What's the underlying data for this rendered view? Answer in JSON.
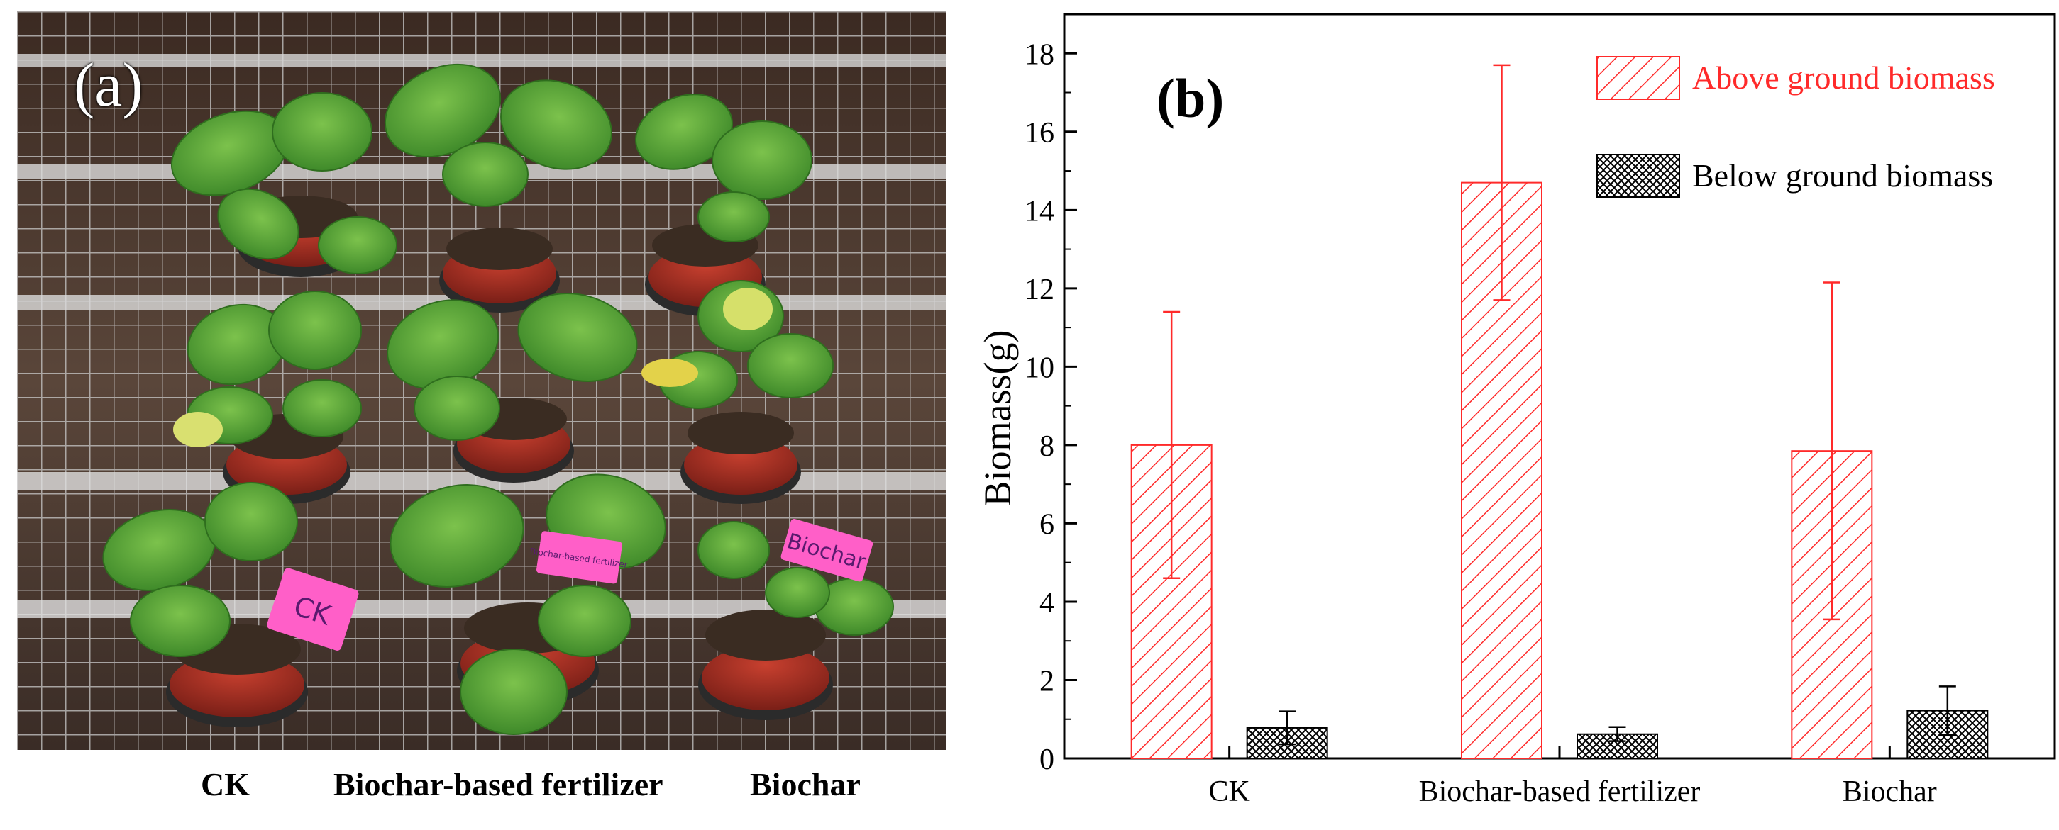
{
  "photo": {
    "panel_label": "(a)",
    "captions": [
      "CK",
      "Biochar-based  fertilizer",
      "Biochar"
    ],
    "pot_tags": [
      "CK",
      "Biochar-based fertilizer",
      "Biochar"
    ]
  },
  "chart_data": {
    "type": "bar",
    "panel_label": "(b)",
    "categories": [
      "CK",
      "Biochar-based fertilizer",
      "Biochar"
    ],
    "series": [
      {
        "name": "Above ground biomass",
        "values": [
          8.0,
          14.7,
          7.85
        ],
        "errors": [
          3.4,
          3.0,
          4.3
        ],
        "color": "#ff2a2a",
        "pattern": "diagonal-hatch"
      },
      {
        "name": "Below ground biomass",
        "values": [
          0.78,
          0.62,
          1.22
        ],
        "errors": [
          0.42,
          0.18,
          0.62
        ],
        "color": "#000000",
        "pattern": "crosshatch"
      }
    ],
    "ylabel": "Biomass(g)",
    "xlabel": "",
    "ylim": [
      0,
      19
    ],
    "yticks": [
      0,
      2,
      4,
      6,
      8,
      10,
      12,
      14,
      16,
      18
    ],
    "legend_position": "top-right",
    "grid": false
  }
}
